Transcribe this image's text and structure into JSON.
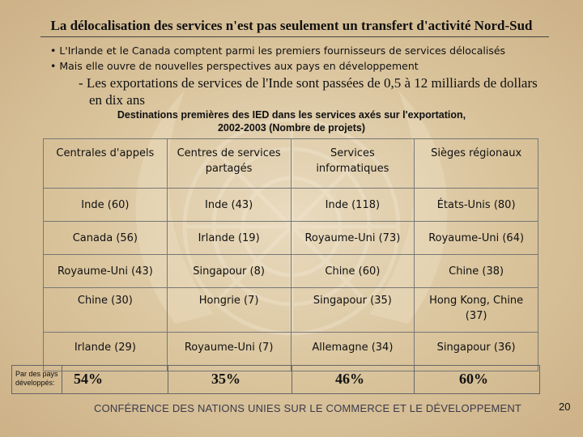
{
  "slide": {
    "title": "La délocalisation des services n'est pas seulement un transfert d'activité Nord-Sud",
    "bullets": [
      "• L'Irlande et le Canada comptent parmi les premiers fournisseurs de services délocalisés",
      "• Mais elle ouvre de nouvelles perspectives aux pays en développement"
    ],
    "sub_line1": "- Les exportations de services de l'Inde sont passées de 0,5 à 12 milliards de dollars",
    "sub_line2": "en dix ans",
    "caption_line1": "Destinations premières des IED dans les services axés sur l'exportation,",
    "caption_line2": "2002-2003 (Nombre de projets)"
  },
  "table": {
    "headers": [
      "Centrales d'appels",
      "Centres de services partagés",
      "Services informatiques",
      "Sièges régionaux"
    ],
    "rows": [
      [
        "Inde (60)",
        "Inde (43)",
        "Inde (118)",
        "États-Unis (80)"
      ],
      [
        "Canada (56)",
        "Irlande (19)",
        "Royaume-Uni (73)",
        "Royaume-Uni (64)"
      ],
      [
        "Royaume-Uni (43)",
        "Singapour (8)",
        "Chine (60)",
        "Chine (38)"
      ],
      [
        "Chine (30)",
        "Hongrie (7)",
        "Singapour (35)",
        "Hong Kong, Chine (37)"
      ],
      [
        "Irlande (29)",
        "Royaume-Uni (7)",
        "Allemagne (34)",
        "Singapour (36)"
      ]
    ],
    "footer_label": "Par des pays développés:",
    "footer_values": [
      "54%",
      "35%",
      "46%",
      "60%"
    ]
  },
  "footer": {
    "organization": "CONFÉRENCE DES NATIONS UNIES SUR LE COMMERCE ET LE DÉVELOPPEMENT",
    "page_number": "20"
  }
}
